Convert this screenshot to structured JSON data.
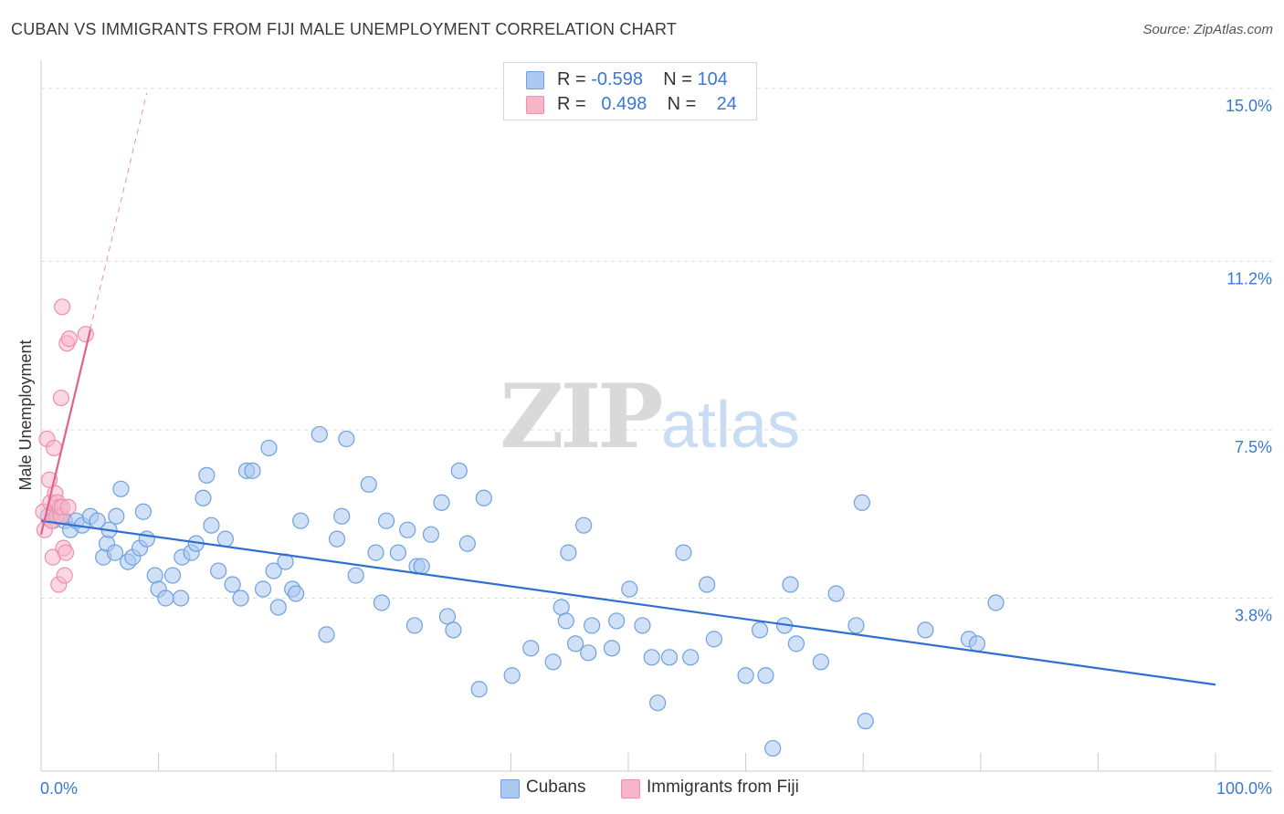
{
  "title": "CUBAN VS IMMIGRANTS FROM FIJI MALE UNEMPLOYMENT CORRELATION CHART",
  "source": "Source: ZipAtlas.com",
  "watermark": {
    "zip": "ZIP",
    "atlas": "atlas"
  },
  "legend": {
    "rows": [
      {
        "r_label": "R =",
        "r_value": "-0.598",
        "n_label": "N =",
        "n_value": "104"
      },
      {
        "r_label": "R =",
        "r_value": "0.498",
        "n_label": "N =",
        "n_value": "24"
      }
    ]
  },
  "colors": {
    "cubans_fill": "#aac8f0",
    "cubans_stroke": "#6fa0e0",
    "cubans_line": "#2f6fd0",
    "fiji_fill": "#f7b6c8",
    "fiji_stroke": "#ee8fae",
    "fiji_line": "#e0608f",
    "tick_label": "#3a78d4",
    "grid": "#dddddd"
  },
  "chart_data": {
    "type": "scatter",
    "ylabel": "Male Unemployment",
    "xlim": [
      0,
      100
    ],
    "ylim": [
      0,
      15.5
    ],
    "x_tick_labels": [
      "0.0%",
      "100.0%"
    ],
    "y_ticks": [
      3.8,
      7.5,
      11.2,
      15.0
    ],
    "y_tick_labels": [
      "3.8%",
      "7.5%",
      "11.2%",
      "15.0%"
    ],
    "grid": true,
    "legend_placement": "bottom-center",
    "series": [
      {
        "name": "Cubans",
        "trend": {
          "x": [
            0,
            100
          ],
          "y": [
            5.5,
            1.9
          ]
        },
        "points": [
          [
            0.6,
            5.6
          ],
          [
            1.0,
            5.5
          ],
          [
            1.5,
            5.6
          ],
          [
            2.0,
            5.5
          ],
          [
            2.5,
            5.3
          ],
          [
            3.0,
            5.5
          ],
          [
            3.5,
            5.4
          ],
          [
            4.2,
            5.6
          ],
          [
            4.8,
            5.5
          ],
          [
            5.3,
            4.7
          ],
          [
            5.6,
            5.0
          ],
          [
            5.8,
            5.3
          ],
          [
            6.3,
            4.8
          ],
          [
            6.4,
            5.6
          ],
          [
            6.8,
            6.2
          ],
          [
            7.4,
            4.6
          ],
          [
            7.8,
            4.7
          ],
          [
            8.4,
            4.9
          ],
          [
            8.7,
            5.7
          ],
          [
            9.0,
            5.1
          ],
          [
            9.7,
            4.3
          ],
          [
            10.0,
            4.0
          ],
          [
            10.6,
            3.8
          ],
          [
            11.2,
            4.3
          ],
          [
            11.9,
            3.8
          ],
          [
            12.0,
            4.7
          ],
          [
            12.8,
            4.8
          ],
          [
            13.2,
            5.0
          ],
          [
            13.8,
            6.0
          ],
          [
            14.1,
            6.5
          ],
          [
            14.5,
            5.4
          ],
          [
            15.1,
            4.4
          ],
          [
            15.7,
            5.1
          ],
          [
            16.3,
            4.1
          ],
          [
            17.0,
            3.8
          ],
          [
            17.5,
            6.6
          ],
          [
            18.0,
            6.6
          ],
          [
            18.9,
            4.0
          ],
          [
            19.4,
            7.1
          ],
          [
            19.8,
            4.4
          ],
          [
            20.2,
            3.6
          ],
          [
            20.8,
            4.6
          ],
          [
            21.4,
            4.0
          ],
          [
            21.7,
            3.9
          ],
          [
            22.1,
            5.5
          ],
          [
            23.7,
            7.4
          ],
          [
            24.3,
            3.0
          ],
          [
            25.2,
            5.1
          ],
          [
            25.6,
            5.6
          ],
          [
            26.0,
            7.3
          ],
          [
            26.8,
            4.3
          ],
          [
            27.9,
            6.3
          ],
          [
            28.5,
            4.8
          ],
          [
            29.0,
            3.7
          ],
          [
            29.4,
            5.5
          ],
          [
            30.4,
            4.8
          ],
          [
            31.2,
            5.3
          ],
          [
            31.8,
            3.2
          ],
          [
            32.0,
            4.5
          ],
          [
            32.4,
            4.5
          ],
          [
            33.2,
            5.2
          ],
          [
            34.1,
            5.9
          ],
          [
            34.6,
            3.4
          ],
          [
            35.1,
            3.1
          ],
          [
            35.6,
            6.6
          ],
          [
            36.3,
            5.0
          ],
          [
            37.3,
            1.8
          ],
          [
            37.7,
            6.0
          ],
          [
            40.1,
            2.1
          ],
          [
            41.7,
            2.7
          ],
          [
            43.6,
            2.4
          ],
          [
            44.3,
            3.6
          ],
          [
            44.7,
            3.3
          ],
          [
            44.9,
            4.8
          ],
          [
            45.5,
            2.8
          ],
          [
            46.2,
            5.4
          ],
          [
            46.6,
            2.6
          ],
          [
            46.9,
            3.2
          ],
          [
            48.6,
            2.7
          ],
          [
            49.0,
            3.3
          ],
          [
            50.1,
            4.0
          ],
          [
            51.2,
            3.2
          ],
          [
            52.0,
            2.5
          ],
          [
            52.5,
            1.5
          ],
          [
            53.5,
            2.5
          ],
          [
            54.7,
            4.8
          ],
          [
            55.3,
            2.5
          ],
          [
            56.7,
            4.1
          ],
          [
            57.3,
            2.9
          ],
          [
            60.0,
            2.1
          ],
          [
            61.2,
            3.1
          ],
          [
            61.7,
            2.1
          ],
          [
            62.3,
            0.5
          ],
          [
            63.3,
            3.2
          ],
          [
            63.8,
            4.1
          ],
          [
            64.3,
            2.8
          ],
          [
            66.4,
            2.4
          ],
          [
            67.7,
            3.9
          ],
          [
            69.4,
            3.2
          ],
          [
            69.9,
            5.9
          ],
          [
            70.2,
            1.1
          ],
          [
            75.3,
            3.1
          ],
          [
            79.0,
            2.9
          ],
          [
            79.7,
            2.8
          ],
          [
            81.3,
            3.7
          ]
        ]
      },
      {
        "name": "Immigrants from Fiji",
        "trend": {
          "x": [
            0,
            4.2
          ],
          "y": [
            5.2,
            9.7
          ]
        },
        "trend_extension": {
          "x": [
            0,
            9.0
          ],
          "y": [
            5.2,
            14.9
          ]
        },
        "points": [
          [
            0.2,
            5.7
          ],
          [
            0.3,
            5.3
          ],
          [
            0.5,
            7.3
          ],
          [
            0.7,
            6.4
          ],
          [
            0.8,
            5.9
          ],
          [
            0.9,
            5.5
          ],
          [
            1.0,
            4.7
          ],
          [
            1.1,
            7.1
          ],
          [
            1.2,
            6.1
          ],
          [
            1.3,
            5.6
          ],
          [
            1.4,
            5.9
          ],
          [
            1.5,
            4.1
          ],
          [
            1.6,
            5.8
          ],
          [
            1.7,
            5.6
          ],
          [
            1.8,
            5.8
          ],
          [
            1.7,
            8.2
          ],
          [
            1.8,
            10.2
          ],
          [
            1.9,
            4.9
          ],
          [
            2.0,
            4.3
          ],
          [
            2.1,
            4.8
          ],
          [
            2.2,
            9.4
          ],
          [
            2.4,
            9.5
          ],
          [
            2.3,
            5.8
          ],
          [
            3.8,
            9.6
          ]
        ]
      }
    ]
  },
  "bottom_legend": {
    "cubans": "Cubans",
    "fiji": "Immigrants from Fiji"
  }
}
